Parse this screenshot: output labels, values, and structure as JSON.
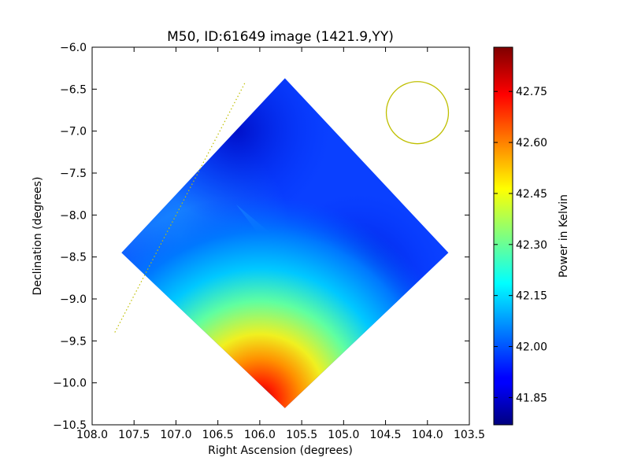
{
  "chart_data": {
    "type": "heatmap",
    "title": "M50, ID:61649 image (1421.9,YY)",
    "xlabel": "Right Ascension (degrees)",
    "ylabel": "Declination (degrees)",
    "xlim": [
      108.0,
      103.5
    ],
    "ylim": [
      -10.5,
      -6.0
    ],
    "x_ticks": [
      108.0,
      107.5,
      107.0,
      106.5,
      106.0,
      105.5,
      105.0,
      104.5,
      104.0,
      103.5
    ],
    "x_tick_labels": [
      "108.0",
      "107.5",
      "107.0",
      "106.5",
      "106.0",
      "105.5",
      "105.0",
      "104.5",
      "104.0",
      "103.5"
    ],
    "y_ticks": [
      -6.0,
      -6.5,
      -7.0,
      -7.5,
      -8.0,
      -8.5,
      -9.0,
      -9.5,
      -10.0,
      -10.5
    ],
    "y_tick_labels": [
      "−6.0",
      "−6.5",
      "−7.0",
      "−7.5",
      "−8.0",
      "−8.5",
      "−9.0",
      "−9.5",
      "−10.0",
      "−10.5"
    ],
    "colorbar": {
      "label": "Power in Kelvin",
      "range": [
        41.77,
        42.88
      ],
      "ticks": [
        41.85,
        42.0,
        42.15,
        42.3,
        42.45,
        42.6,
        42.75
      ],
      "tick_labels": [
        "41.85",
        "42.00",
        "42.15",
        "42.30",
        "42.45",
        "42.60",
        "42.75"
      ],
      "colormap": "jet"
    },
    "field_shape": "diamond",
    "field_vertices": [
      [
        105.7,
        -6.37
      ],
      [
        103.75,
        -8.45
      ],
      [
        105.7,
        -10.3
      ],
      [
        107.65,
        -8.45
      ]
    ],
    "hotspot": {
      "x": 106.0,
      "y": -10.2,
      "value": 42.85
    },
    "beam_circle": {
      "center": [
        104.12,
        -6.78
      ],
      "radius_deg": 0.37,
      "color": "#bfbf00"
    },
    "dotted_line": {
      "from": [
        106.18,
        -6.43
      ],
      "to": [
        107.73,
        -9.4
      ],
      "color": "#bfbf00"
    }
  }
}
